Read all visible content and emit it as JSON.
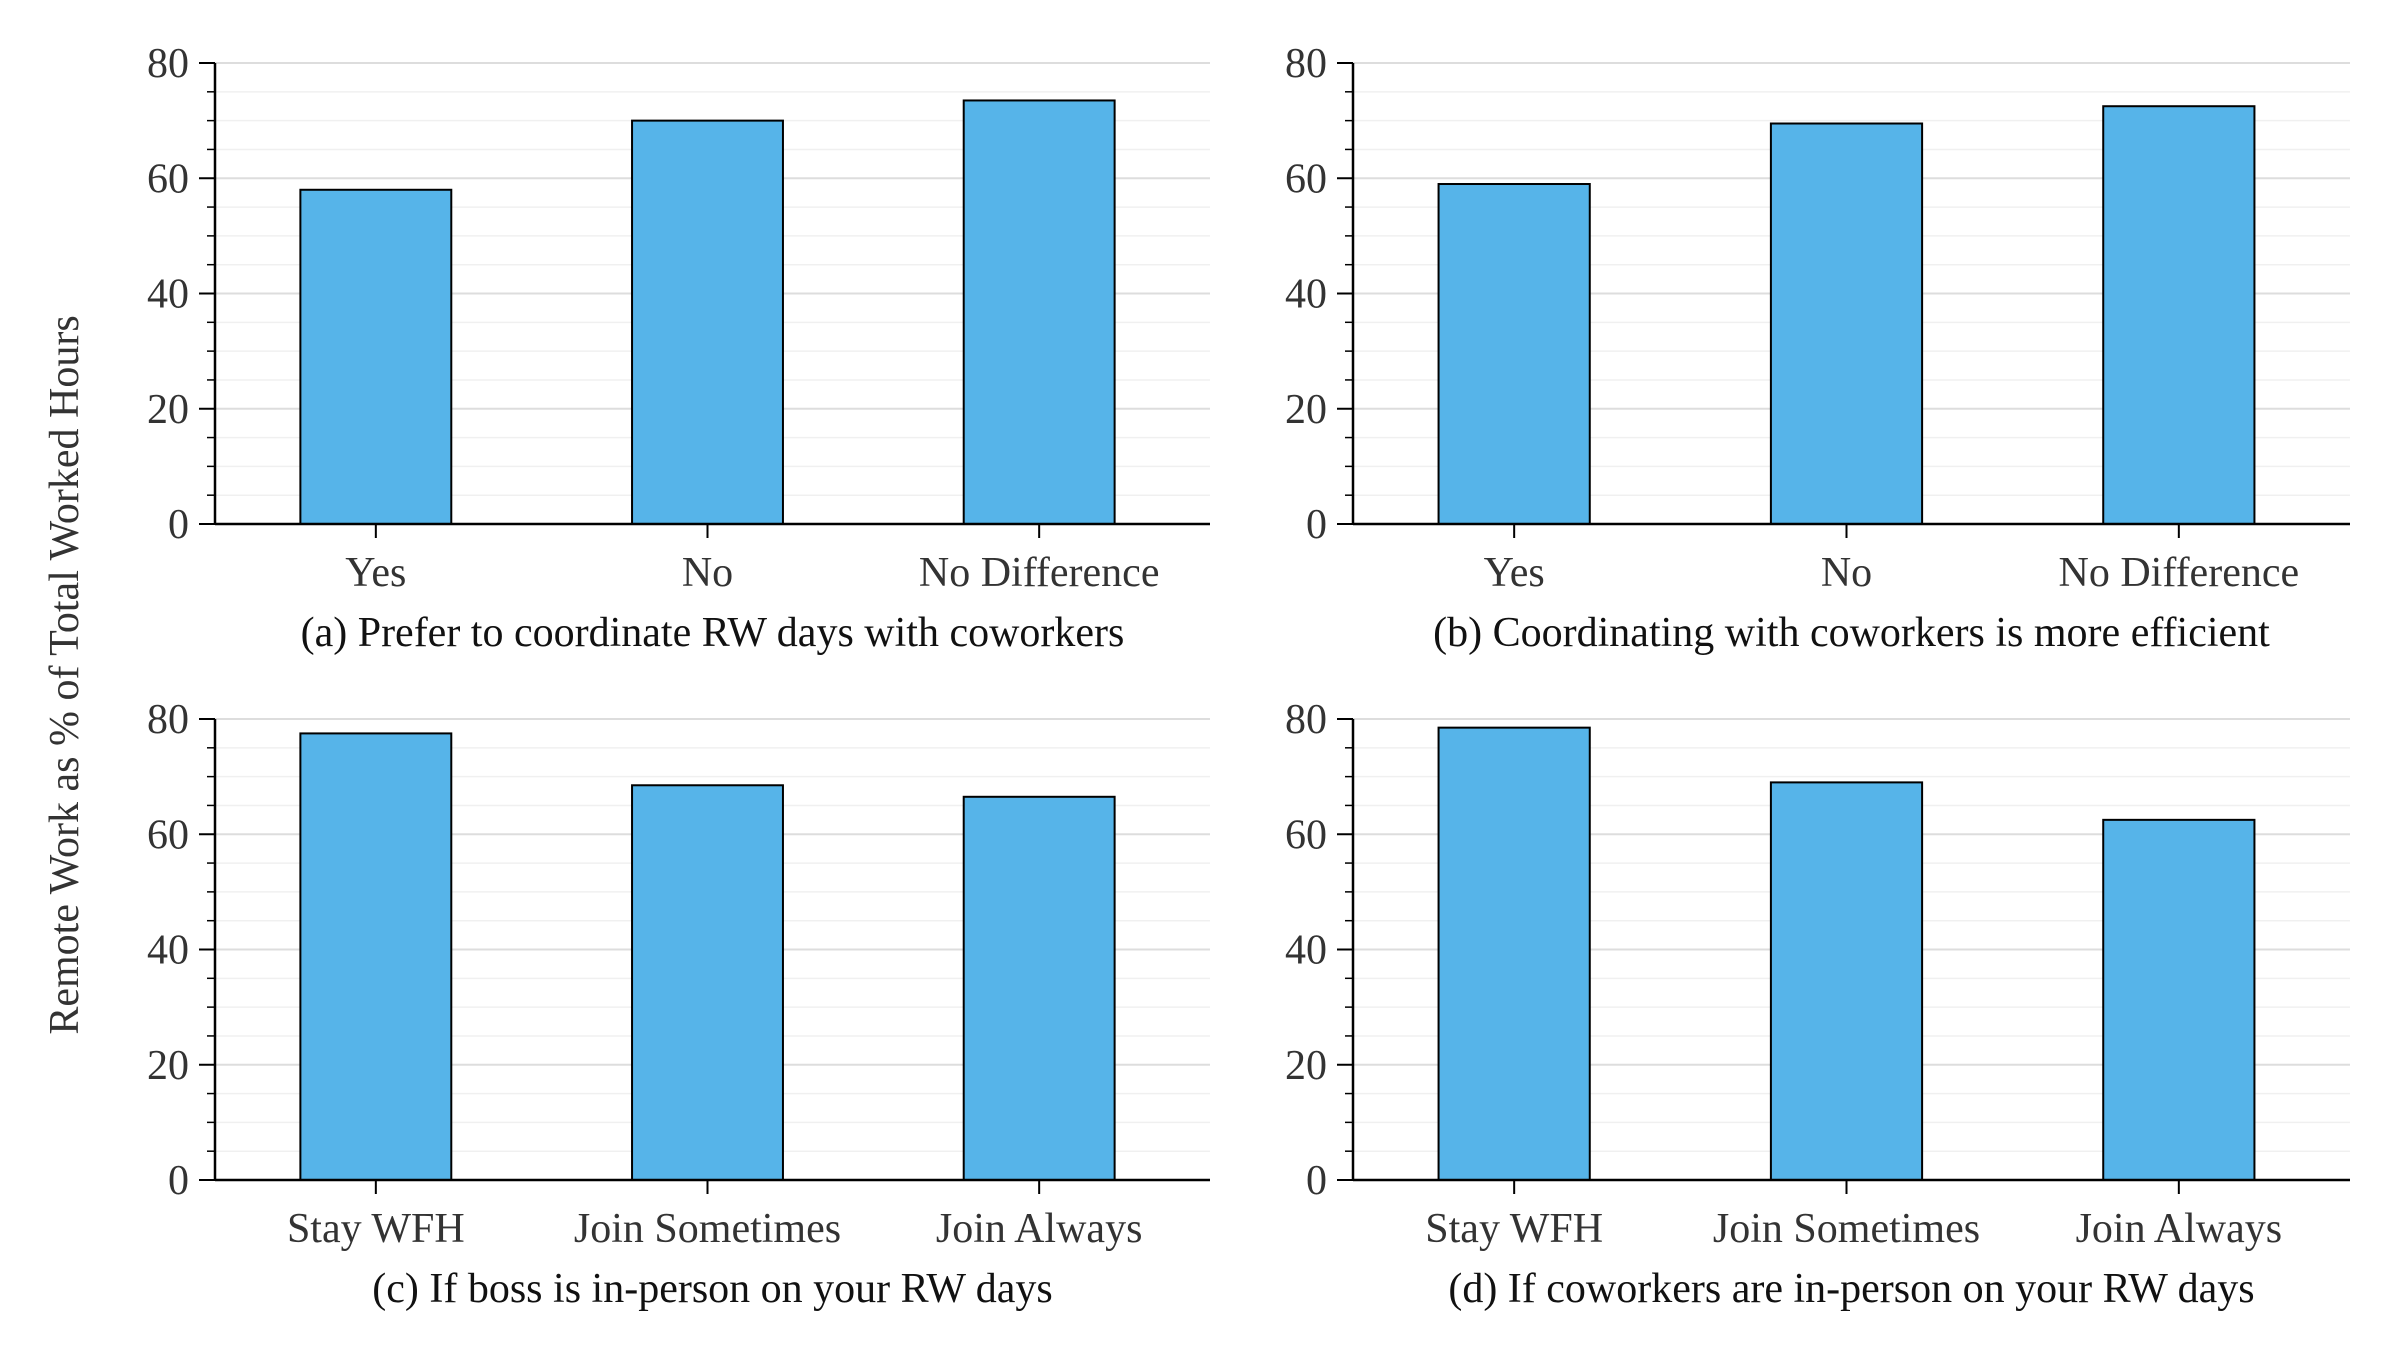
{
  "colors": {
    "bar_fill": "#56b4e9",
    "bar_edge": "#000000",
    "axis": "#000000",
    "major_grid": "#dddddd",
    "minor_grid": "#f0f0f0",
    "text": "#333333"
  },
  "shared_ylabel": "Remote Work as % of Total Worked Hours",
  "chart_data": [
    {
      "type": "bar",
      "title": "(a) Prefer to coordinate RW days with coworkers",
      "categories": [
        "Yes",
        "No",
        "No Difference"
      ],
      "values": [
        58,
        70,
        73.5
      ],
      "xlabel": "",
      "ylabel": "Remote Work as % of Total Worked Hours",
      "ylim": [
        0,
        80
      ],
      "yticks": [
        0,
        20,
        40,
        60,
        80
      ],
      "grid": true
    },
    {
      "type": "bar",
      "title": "(b) Coordinating with coworkers is more efficient",
      "categories": [
        "Yes",
        "No",
        "No Difference"
      ],
      "values": [
        59,
        69.5,
        72.5
      ],
      "xlabel": "",
      "ylabel": "Remote Work as % of Total Worked Hours",
      "ylim": [
        0,
        80
      ],
      "yticks": [
        0,
        20,
        40,
        60,
        80
      ],
      "grid": true
    },
    {
      "type": "bar",
      "title": "(c) If boss is in-person on your RW days",
      "categories": [
        "Stay WFH",
        "Join Sometimes",
        "Join Always"
      ],
      "values": [
        77.5,
        68.5,
        66.5
      ],
      "xlabel": "",
      "ylabel": "Remote Work as % of Total Worked Hours",
      "ylim": [
        0,
        80
      ],
      "yticks": [
        0,
        20,
        40,
        60,
        80
      ],
      "grid": true
    },
    {
      "type": "bar",
      "title": "(d) If coworkers are in-person on your RW days",
      "categories": [
        "Stay WFH",
        "Join Sometimes",
        "Join Always"
      ],
      "values": [
        78.5,
        69,
        62.5
      ],
      "xlabel": "",
      "ylabel": "Remote Work as % of Total Worked Hours",
      "ylim": [
        0,
        80
      ],
      "yticks": [
        0,
        20,
        40,
        60,
        80
      ],
      "grid": true
    }
  ]
}
